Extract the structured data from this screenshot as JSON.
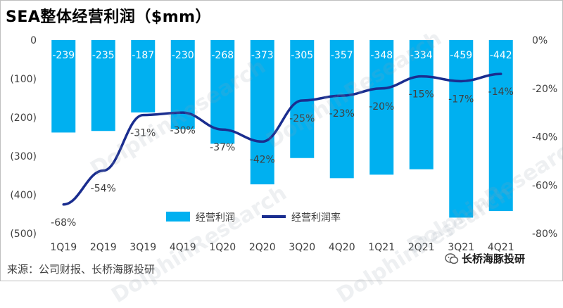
{
  "title": "SEA整体经营利润（$mm）",
  "source": "来源：公司财报、长桥海豚投研",
  "brand": "长桥海豚投研",
  "watermark": "DolphinResearch",
  "colors": {
    "bar": "#00b0f0",
    "line": "#1a2d8f",
    "text": "#404040"
  },
  "chart_data": {
    "type": "bar+line",
    "categories": [
      "1Q19",
      "2Q19",
      "3Q19",
      "4Q19",
      "1Q20",
      "2Q20",
      "3Q20",
      "4Q20",
      "1Q21",
      "2Q21",
      "3Q21",
      "4Q21"
    ],
    "series": [
      {
        "name": "经营利润",
        "type": "bar",
        "axis": "left",
        "values": [
          -239,
          -235,
          -187,
          -230,
          -268,
          -373,
          -305,
          -357,
          -348,
          -334,
          -459,
          -442
        ],
        "labels": [
          "-239",
          "-235",
          "-187",
          "-230",
          "-268",
          "-373",
          "-305",
          "-357",
          "-348",
          "-334",
          "-459",
          "-442"
        ]
      },
      {
        "name": "经营利润率",
        "type": "line",
        "axis": "right",
        "values": [
          -68,
          -54,
          -31,
          -30,
          -37,
          -42,
          -25,
          -23,
          -20,
          -15,
          -17,
          -14
        ],
        "labels": [
          "-68%",
          "-54%",
          "-31%",
          "-30%",
          "-37%",
          "-42%",
          "-25%",
          "-23%",
          "-20%",
          "-15%",
          "-17%",
          "-14%"
        ]
      }
    ],
    "y_left": {
      "range": [
        -500,
        0
      ],
      "ticks": [
        0,
        -100,
        -200,
        -300,
        -400,
        -500
      ],
      "tick_labels": [
        "0",
        "(100)",
        "(200)",
        "(300)",
        "(400)",
        "(500)"
      ]
    },
    "y_right": {
      "range": [
        -80,
        0
      ],
      "ticks": [
        0,
        -20,
        -40,
        -60,
        -80
      ],
      "tick_labels": [
        "0%",
        "-20%",
        "-40%",
        "-60%",
        "-80%"
      ]
    },
    "legend": {
      "position": "bottom-center",
      "entries": [
        "经营利润",
        "经营利润率"
      ]
    },
    "grid": false
  }
}
